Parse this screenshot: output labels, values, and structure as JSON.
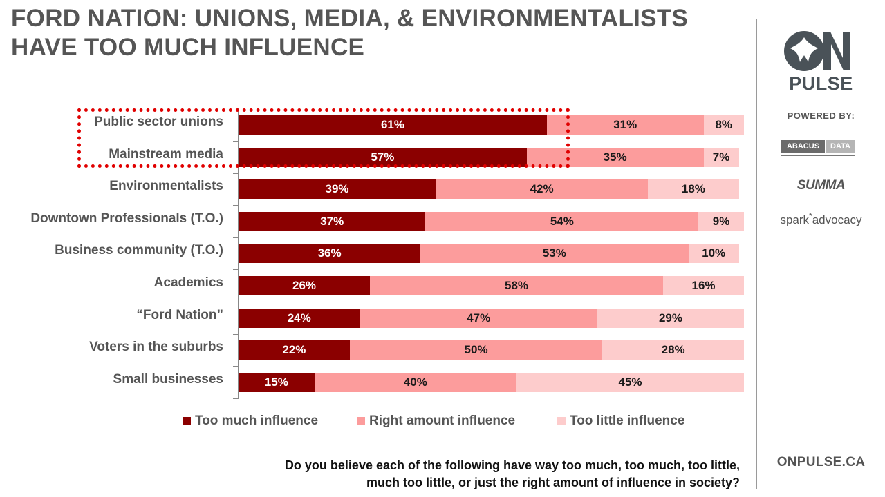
{
  "title": {
    "line1": "FORD NATION: UNIONS, MEDIA, & ENVIRONMENTALISTS",
    "line2": "HAVE TOO MUCH INFLUENCE"
  },
  "brand": {
    "logo_text": "ON",
    "pulse": "PULSE",
    "powered_by": "POWERED BY:",
    "abacus_left": "ABACUS",
    "abacus_right": "DATA",
    "summa": "SUMMA",
    "spark_a": "spark",
    "spark_star": "*",
    "spark_b": "advocacy",
    "url": "ONPULSE.CA"
  },
  "question": {
    "line1": "Do you believe each of the following have way too much, too much, too little,",
    "line2": "much too little, or just the right amount of influence in society?"
  },
  "colors": {
    "too_much": "#8b0000",
    "right_amount": "#fc9c9c",
    "too_little": "#fdcccc",
    "highlight": "#e00000"
  },
  "chart_data": {
    "type": "bar",
    "orientation": "horizontal",
    "stacked": true,
    "categories": [
      "Public sector unions",
      "Mainstream media",
      "Environmentalists",
      "Downtown Professionals (T.O.)",
      "Business community (T.O.)",
      "Academics",
      "“Ford Nation”",
      "Voters in the suburbs",
      "Small businesses"
    ],
    "series": [
      {
        "name": "Too much influence",
        "values": [
          61,
          57,
          39,
          37,
          36,
          26,
          24,
          22,
          15
        ]
      },
      {
        "name": "Right amount influence",
        "values": [
          31,
          35,
          42,
          54,
          53,
          58,
          47,
          50,
          40
        ]
      },
      {
        "name": "Too little influence",
        "values": [
          8,
          7,
          18,
          9,
          10,
          16,
          29,
          28,
          45
        ]
      }
    ],
    "value_suffix": "%",
    "legend_position": "bottom",
    "highlighted_categories": [
      "Public sector unions",
      "Mainstream media"
    ]
  }
}
